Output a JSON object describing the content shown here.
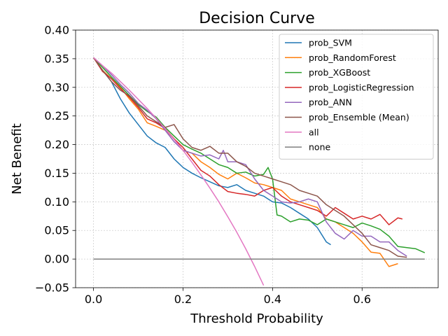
{
  "chart_data": {
    "type": "line",
    "title": "Decision Curve",
    "xlabel": "Threshold Probability",
    "ylabel": "Net Benefit",
    "xlim": [
      -0.04,
      0.77
    ],
    "ylim": [
      -0.05,
      0.4
    ],
    "xticks": [
      0.0,
      0.2,
      0.4,
      0.6
    ],
    "xtick_labels": [
      "0.0",
      "0.2",
      "0.4",
      "0.6"
    ],
    "yticks": [
      -0.05,
      0.0,
      0.05,
      0.1,
      0.15,
      0.2,
      0.25,
      0.3,
      0.35,
      0.4
    ],
    "ytick_labels": [
      "−0.05",
      "0.00",
      "0.05",
      "0.10",
      "0.15",
      "0.20",
      "0.25",
      "0.30",
      "0.35",
      "0.40"
    ],
    "grid": true,
    "legend_position": "upper-right",
    "series": [
      {
        "name": "prob_SVM",
        "color": "#1f77b4",
        "x": [
          0.0,
          0.02,
          0.04,
          0.06,
          0.08,
          0.1,
          0.12,
          0.14,
          0.16,
          0.18,
          0.2,
          0.22,
          0.24,
          0.26,
          0.28,
          0.3,
          0.32,
          0.34,
          0.36,
          0.38,
          0.4,
          0.42,
          0.44,
          0.46,
          0.48,
          0.5,
          0.52,
          0.53
        ],
        "y": [
          0.352,
          0.33,
          0.31,
          0.28,
          0.255,
          0.235,
          0.215,
          0.203,
          0.195,
          0.175,
          0.16,
          0.15,
          0.142,
          0.135,
          0.128,
          0.125,
          0.13,
          0.12,
          0.115,
          0.11,
          0.1,
          0.098,
          0.09,
          0.08,
          0.07,
          0.055,
          0.03,
          0.025
        ]
      },
      {
        "name": "prob_RandomForest",
        "color": "#ff7f0e",
        "x": [
          0.0,
          0.02,
          0.04,
          0.06,
          0.08,
          0.1,
          0.12,
          0.14,
          0.16,
          0.18,
          0.2,
          0.22,
          0.24,
          0.26,
          0.28,
          0.3,
          0.32,
          0.34,
          0.36,
          0.38,
          0.4,
          0.42,
          0.44,
          0.46,
          0.48,
          0.5,
          0.52,
          0.54,
          0.56,
          0.58,
          0.6,
          0.62,
          0.64,
          0.66,
          0.68
        ],
        "y": [
          0.352,
          0.33,
          0.315,
          0.3,
          0.28,
          0.262,
          0.238,
          0.232,
          0.225,
          0.21,
          0.19,
          0.185,
          0.17,
          0.16,
          0.148,
          0.14,
          0.15,
          0.142,
          0.133,
          0.13,
          0.125,
          0.12,
          0.105,
          0.1,
          0.095,
          0.09,
          0.07,
          0.065,
          0.055,
          0.045,
          0.03,
          0.012,
          0.01,
          -0.013,
          -0.008
        ]
      },
      {
        "name": "prob_XGBoost",
        "color": "#2ca02c",
        "x": [
          0.0,
          0.02,
          0.04,
          0.06,
          0.08,
          0.1,
          0.12,
          0.14,
          0.16,
          0.18,
          0.2,
          0.22,
          0.24,
          0.26,
          0.28,
          0.3,
          0.32,
          0.34,
          0.36,
          0.38,
          0.39,
          0.4,
          0.41,
          0.42,
          0.44,
          0.46,
          0.48,
          0.5,
          0.52,
          0.54,
          0.56,
          0.58,
          0.6,
          0.62,
          0.64,
          0.66,
          0.68,
          0.7,
          0.72,
          0.74
        ],
        "y": [
          0.352,
          0.335,
          0.318,
          0.302,
          0.286,
          0.27,
          0.258,
          0.248,
          0.23,
          0.215,
          0.2,
          0.192,
          0.185,
          0.175,
          0.165,
          0.16,
          0.15,
          0.152,
          0.145,
          0.148,
          0.16,
          0.14,
          0.077,
          0.075,
          0.065,
          0.07,
          0.068,
          0.06,
          0.07,
          0.065,
          0.06,
          0.055,
          0.063,
          0.058,
          0.052,
          0.04,
          0.022,
          0.02,
          0.018,
          0.011
        ]
      },
      {
        "name": "prob_LogisticRegression",
        "color": "#d62728",
        "x": [
          0.0,
          0.02,
          0.04,
          0.06,
          0.08,
          0.1,
          0.12,
          0.14,
          0.16,
          0.18,
          0.2,
          0.22,
          0.24,
          0.26,
          0.28,
          0.3,
          0.32,
          0.34,
          0.36,
          0.38,
          0.4,
          0.42,
          0.44,
          0.46,
          0.48,
          0.5,
          0.52,
          0.54,
          0.56,
          0.58,
          0.6,
          0.62,
          0.64,
          0.66,
          0.68,
          0.69
        ],
        "y": [
          0.352,
          0.328,
          0.315,
          0.298,
          0.283,
          0.265,
          0.245,
          0.238,
          0.228,
          0.21,
          0.195,
          0.175,
          0.155,
          0.145,
          0.13,
          0.118,
          0.115,
          0.113,
          0.11,
          0.12,
          0.125,
          0.11,
          0.1,
          0.095,
          0.09,
          0.085,
          0.075,
          0.09,
          0.08,
          0.07,
          0.075,
          0.07,
          0.078,
          0.06,
          0.072,
          0.07
        ]
      },
      {
        "name": "prob_ANN",
        "color": "#9467bd",
        "x": [
          0.0,
          0.02,
          0.04,
          0.06,
          0.08,
          0.1,
          0.12,
          0.14,
          0.16,
          0.18,
          0.2,
          0.22,
          0.24,
          0.26,
          0.28,
          0.29,
          0.3,
          0.32,
          0.34,
          0.36,
          0.38,
          0.4,
          0.42,
          0.44,
          0.46,
          0.48,
          0.5,
          0.52,
          0.54,
          0.56,
          0.58,
          0.6,
          0.62,
          0.64,
          0.66,
          0.68,
          0.7
        ],
        "y": [
          0.352,
          0.338,
          0.322,
          0.305,
          0.29,
          0.272,
          0.26,
          0.245,
          0.225,
          0.205,
          0.19,
          0.185,
          0.18,
          0.182,
          0.175,
          0.19,
          0.17,
          0.17,
          0.165,
          0.14,
          0.12,
          0.11,
          0.1,
          0.098,
          0.1,
          0.105,
          0.1,
          0.065,
          0.045,
          0.035,
          0.05,
          0.04,
          0.04,
          0.03,
          0.03,
          0.015,
          0.005
        ]
      },
      {
        "name": "prob_Ensemble (Mean)",
        "color": "#8c564b",
        "x": [
          0.0,
          0.02,
          0.04,
          0.06,
          0.08,
          0.1,
          0.12,
          0.14,
          0.16,
          0.18,
          0.2,
          0.22,
          0.24,
          0.26,
          0.28,
          0.3,
          0.32,
          0.34,
          0.36,
          0.38,
          0.4,
          0.42,
          0.44,
          0.46,
          0.48,
          0.5,
          0.52,
          0.54,
          0.56,
          0.58,
          0.6,
          0.62,
          0.64,
          0.66,
          0.68,
          0.7
        ],
        "y": [
          0.352,
          0.33,
          0.31,
          0.295,
          0.285,
          0.268,
          0.25,
          0.24,
          0.23,
          0.235,
          0.21,
          0.195,
          0.19,
          0.197,
          0.185,
          0.185,
          0.17,
          0.162,
          0.15,
          0.145,
          0.14,
          0.135,
          0.13,
          0.12,
          0.115,
          0.11,
          0.095,
          0.085,
          0.075,
          0.06,
          0.045,
          0.025,
          0.02,
          0.015,
          0.005,
          0.003
        ]
      },
      {
        "name": "all",
        "color": "#e377c2",
        "x": [
          0.0,
          0.02,
          0.04,
          0.06,
          0.08,
          0.1,
          0.12,
          0.14,
          0.16,
          0.18,
          0.2,
          0.22,
          0.24,
          0.26,
          0.28,
          0.3,
          0.32,
          0.34,
          0.36,
          0.38
        ],
        "y": [
          0.352,
          0.338,
          0.325,
          0.31,
          0.295,
          0.279,
          0.263,
          0.246,
          0.228,
          0.209,
          0.19,
          0.169,
          0.147,
          0.124,
          0.1,
          0.074,
          0.047,
          0.018,
          -0.013,
          -0.046
        ]
      },
      {
        "name": "none",
        "color": "#7f7f7f",
        "x": [
          0.0,
          0.74
        ],
        "y": [
          0.0,
          0.0
        ]
      }
    ]
  }
}
